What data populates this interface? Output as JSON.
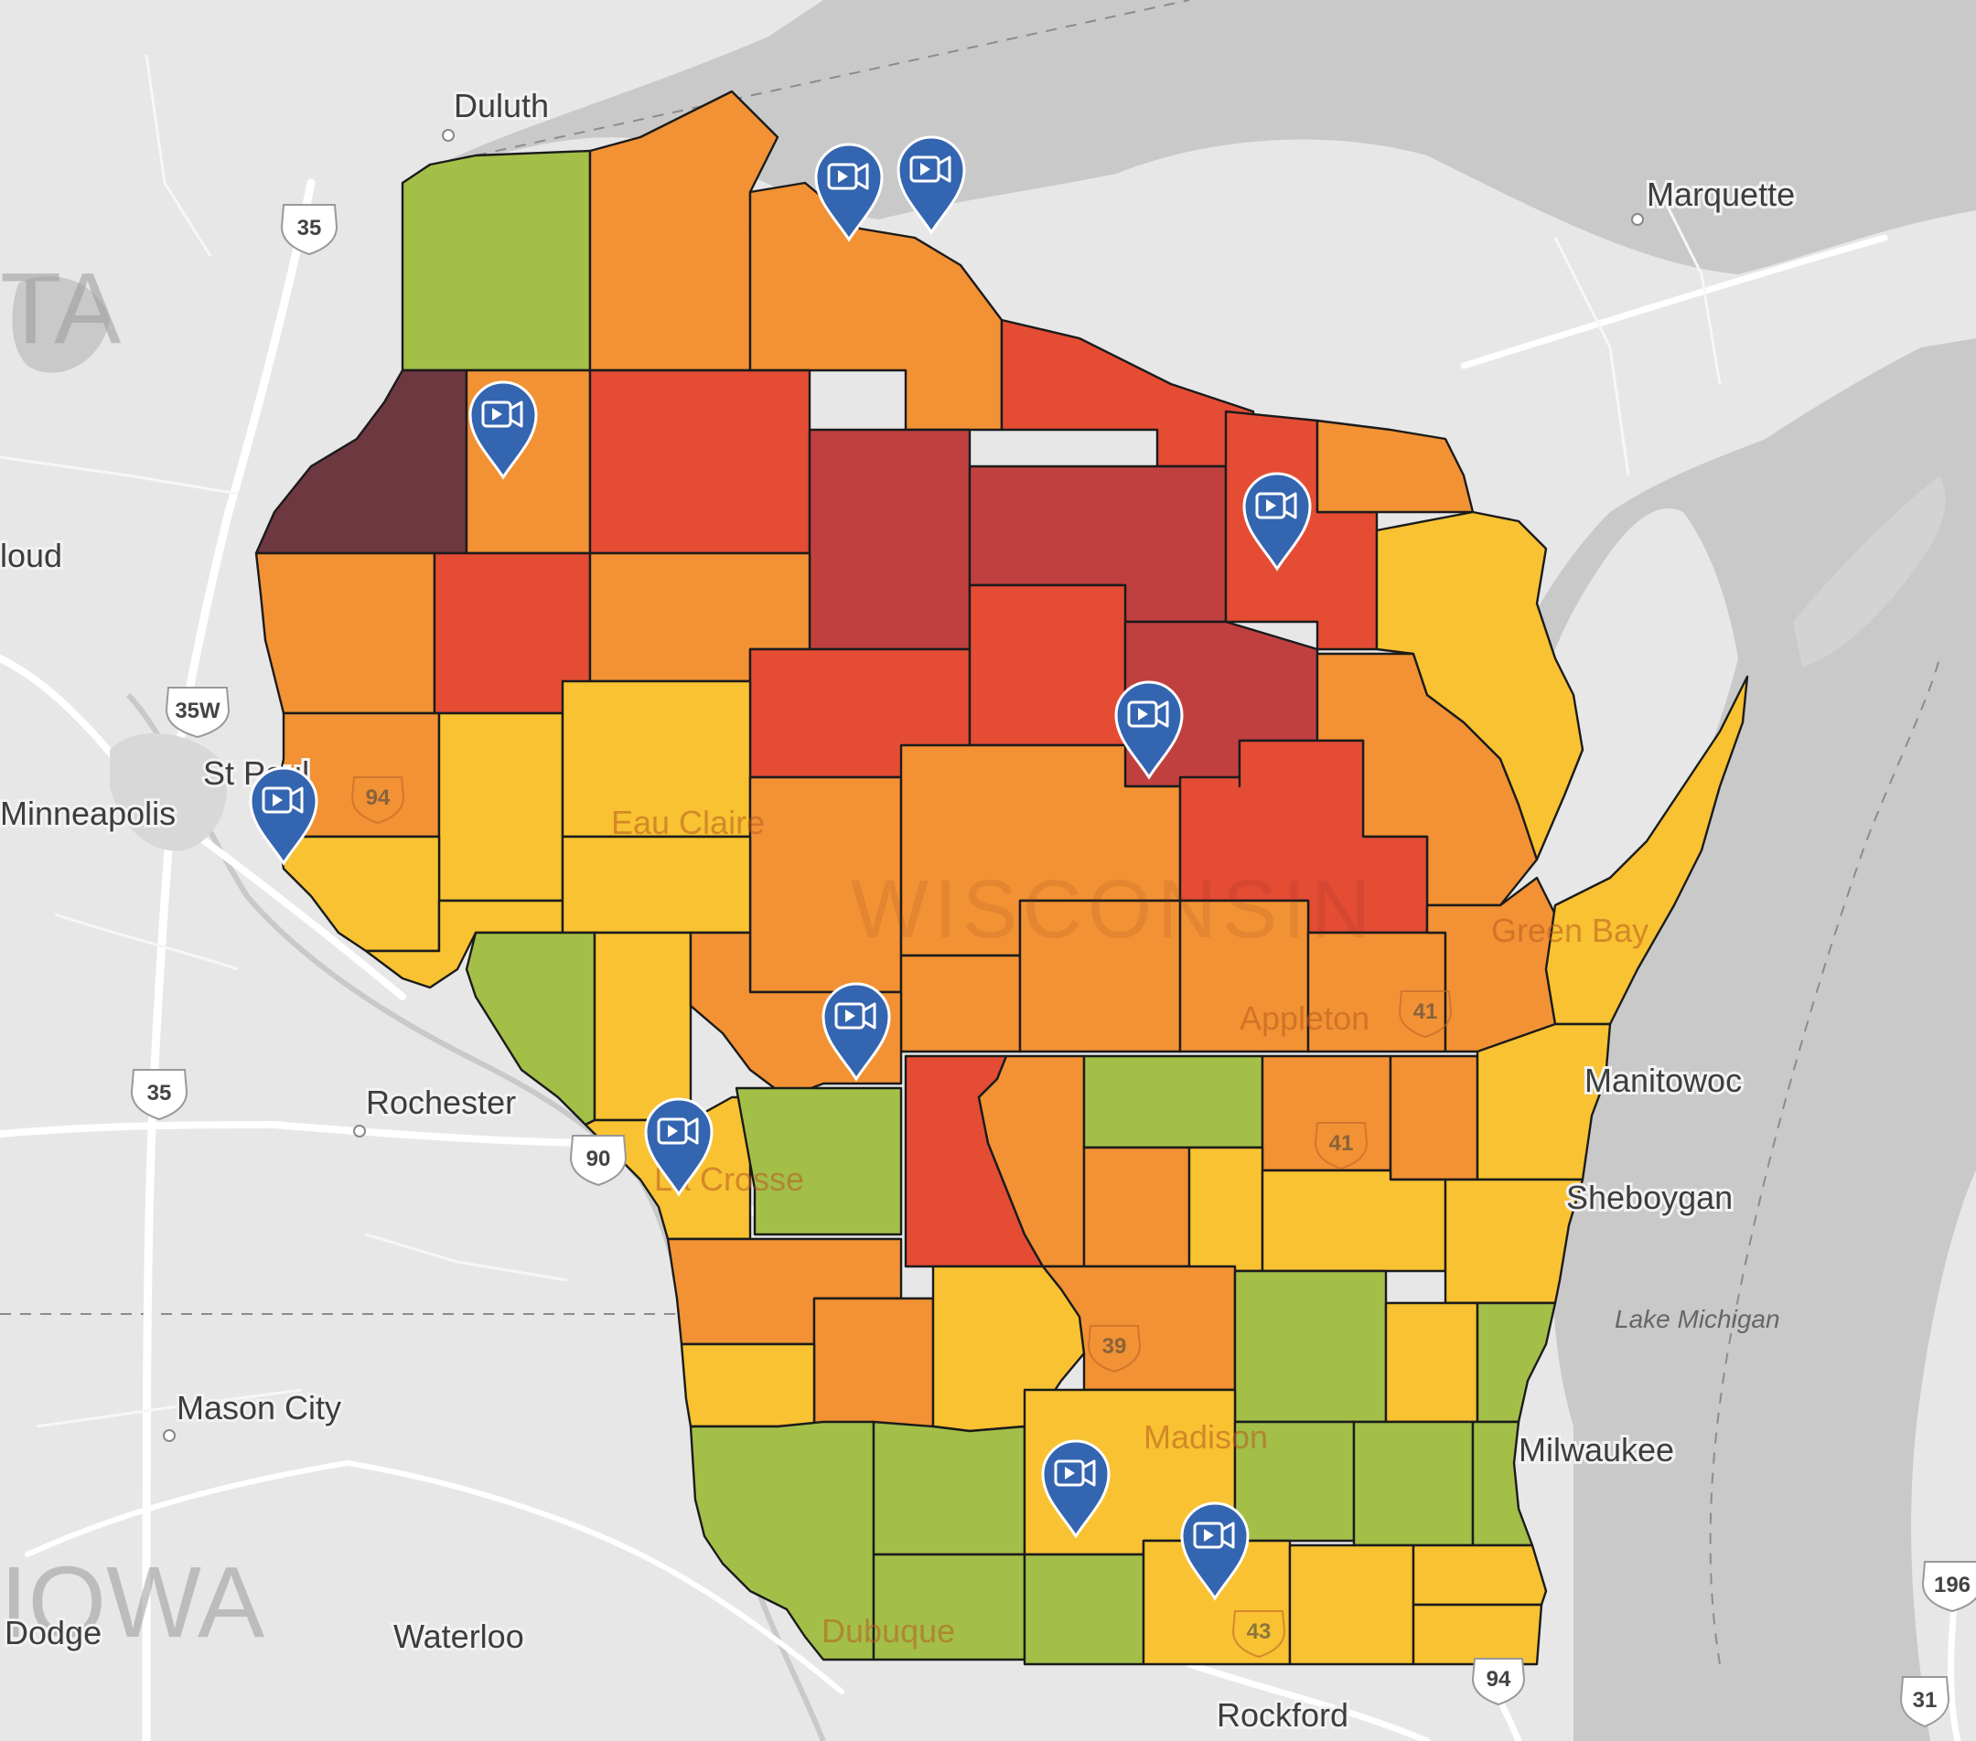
{
  "colors": {
    "background_land": "#e7e7e7",
    "water": "#c9c9c9",
    "road": "#ffffff",
    "minor_road": "#f7f7f7",
    "border": "#8c8c8c",
    "green": "#a3bf48",
    "yellow": "#f8c232",
    "orange": "#f29234",
    "red": "#e44c34",
    "dark_red": "#c04040",
    "maroon": "#6e3840",
    "marker_fill": "#3465b0"
  },
  "cities": {
    "duluth": "Duluth",
    "marquette": "Marquette",
    "st_cloud": "loud",
    "st_paul": "St Paul",
    "minneapolis": "Minneapolis",
    "rochester": "Rochester",
    "mason_city": "Mason City",
    "dodge": "Dodge",
    "waterloo": "Waterloo",
    "rockford": "Rockford",
    "milwaukee": "Milwaukee",
    "sheboygan": "Sheboygan",
    "manitowoc": "Manitowoc",
    "green_bay": "Green Bay",
    "appleton": "Appleton",
    "eau_claire": "Eau Claire",
    "la_crosse": "La Crosse",
    "madison": "Madison",
    "dubuque": "Dubuque"
  },
  "regions": {
    "state": "WISCONSIN",
    "minnesota_partial": "TA",
    "iowa_partial": "IOWA",
    "lake": "Lake Michigan"
  },
  "shields": {
    "i35_north": "35",
    "i35w": "35W",
    "i35_south": "35",
    "i90": "90",
    "i94_west": "94",
    "i94_south": "94",
    "i41_appleton": "41",
    "i41_south": "41",
    "i39": "39",
    "i43": "43",
    "i196": "196",
    "us31": "31"
  },
  "markers": [
    {
      "name": "video-marker-ashland",
      "icon": "video-camera-icon"
    },
    {
      "name": "video-marker-bayfield",
      "icon": "video-camera-icon"
    },
    {
      "name": "video-marker-washburn",
      "icon": "video-camera-icon"
    },
    {
      "name": "video-marker-vilas",
      "icon": "video-camera-icon"
    },
    {
      "name": "video-marker-marathon",
      "icon": "video-camera-icon"
    },
    {
      "name": "video-marker-st-croix",
      "icon": "video-camera-icon"
    },
    {
      "name": "video-marker-jackson",
      "icon": "video-camera-icon"
    },
    {
      "name": "video-marker-la-crosse",
      "icon": "video-camera-icon"
    },
    {
      "name": "video-marker-dane",
      "icon": "video-camera-icon"
    },
    {
      "name": "video-marker-rock",
      "icon": "video-camera-icon"
    }
  ]
}
